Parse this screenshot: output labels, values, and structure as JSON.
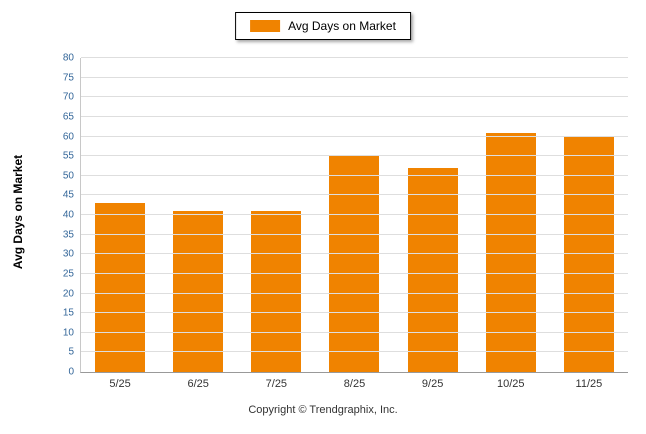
{
  "legend": {
    "label": "Avg Days on Market"
  },
  "footer": {
    "copyright": "Copyright © Trendgraphix, Inc."
  },
  "chart_data": {
    "type": "bar",
    "categories": [
      "5/25",
      "6/25",
      "7/25",
      "8/25",
      "9/25",
      "10/25",
      "11/25"
    ],
    "values": [
      43,
      41,
      41,
      55,
      52,
      61,
      60
    ],
    "title": "",
    "xlabel": "",
    "ylabel": "Avg Days on Market",
    "ylim": [
      0,
      80
    ],
    "ytick_step": 5,
    "bar_color": "#F08300",
    "grid": true,
    "gridline_color": "#dedede",
    "ytick_color": "#336699",
    "legend_position": "top-center"
  }
}
